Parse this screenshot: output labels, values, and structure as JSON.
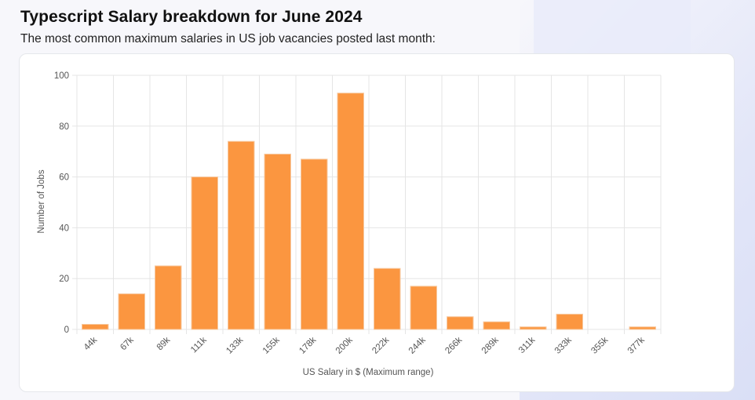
{
  "header": {
    "title": "Typescript Salary breakdown for June 2024",
    "subtitle": "The most common maximum salaries in US job vacancies posted last month:"
  },
  "colors": {
    "bar": "#fb9640",
    "bar_border": "#f7c9a1",
    "grid": "#e5e5e5"
  },
  "chart_data": {
    "type": "bar",
    "title": "",
    "xlabel": "US Salary in $ (Maximum range)",
    "ylabel": "Number of Jobs",
    "ylim": [
      0,
      100
    ],
    "yticks": [
      0,
      20,
      40,
      60,
      80,
      100
    ],
    "grid": true,
    "categories": [
      "44k",
      "67k",
      "89k",
      "111k",
      "133k",
      "155k",
      "178k",
      "200k",
      "222k",
      "244k",
      "266k",
      "289k",
      "311k",
      "333k",
      "355k",
      "377k"
    ],
    "values": [
      2,
      14,
      25,
      60,
      74,
      69,
      67,
      93,
      24,
      17,
      5,
      3,
      1,
      6,
      0,
      1
    ]
  }
}
